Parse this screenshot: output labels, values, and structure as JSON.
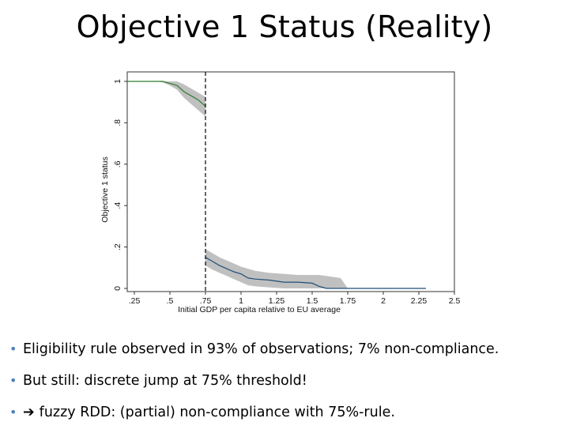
{
  "slide": {
    "title": "Objective 1 Status (Reality)",
    "bullets": [
      {
        "text": "Eligibility rule observed in 93% of observations; 7% non-compliance.",
        "arrow": false
      },
      {
        "text": "But still: discrete jump at 75% threshold!",
        "arrow": false
      },
      {
        "text": "fuzzy RDD: (partial) non-compliance with 75%-rule.",
        "arrow": true
      }
    ]
  },
  "chart_data": {
    "type": "line",
    "xlabel": "Initial GDP per capita relative to EU average",
    "ylabel": "Objective 1 status",
    "xlim": [
      0.2,
      2.5
    ],
    "ylim": [
      0,
      1
    ],
    "x_ticks": [
      {
        "v": 0.25,
        "label": ".25"
      },
      {
        "v": 0.5,
        "label": ".5"
      },
      {
        "v": 0.75,
        "label": ".75"
      },
      {
        "v": 1.0,
        "label": "1"
      },
      {
        "v": 1.25,
        "label": "1.25"
      },
      {
        "v": 1.5,
        "label": "1.5"
      },
      {
        "v": 1.75,
        "label": "1.75"
      },
      {
        "v": 2.0,
        "label": "2"
      },
      {
        "v": 2.25,
        "label": "2.25"
      },
      {
        "v": 2.5,
        "label": "2.5"
      }
    ],
    "y_ticks": [
      {
        "v": 0,
        "label": "0"
      },
      {
        "v": 0.2,
        "label": ".2"
      },
      {
        "v": 0.4,
        "label": ".4"
      },
      {
        "v": 0.6,
        "label": ".6"
      },
      {
        "v": 0.8,
        "label": ".8"
      },
      {
        "v": 1.0,
        "label": "1"
      }
    ],
    "threshold": 0.75,
    "grid": false,
    "colors": {
      "left_series": "#2e7d32",
      "right_series": "#1f4e79",
      "ci_band": "#c0c0c0",
      "threshold_line": "#000000"
    },
    "series": [
      {
        "side": "left",
        "x": [
          0.2,
          0.35,
          0.4,
          0.45,
          0.5,
          0.55,
          0.6,
          0.65,
          0.7,
          0.75
        ],
        "y": [
          1.0,
          1.0,
          1.0,
          1.0,
          0.99,
          0.98,
          0.95,
          0.93,
          0.91,
          0.88
        ],
        "lower": [
          1.0,
          1.0,
          1.0,
          0.995,
          0.98,
          0.96,
          0.92,
          0.89,
          0.86,
          0.83
        ],
        "upper": [
          1.0,
          1.0,
          1.0,
          1.0,
          1.0,
          1.0,
          0.985,
          0.965,
          0.945,
          0.925
        ]
      },
      {
        "side": "right",
        "x": [
          0.75,
          0.8,
          0.85,
          0.9,
          0.95,
          1.0,
          1.05,
          1.1,
          1.2,
          1.3,
          1.4,
          1.5,
          1.55,
          1.6,
          1.7,
          1.75,
          2.0,
          2.3
        ],
        "y": [
          0.15,
          0.13,
          0.11,
          0.095,
          0.08,
          0.07,
          0.05,
          0.045,
          0.04,
          0.03,
          0.03,
          0.025,
          0.01,
          0.0,
          0.0,
          0.0,
          0.0,
          0.0
        ],
        "lower": [
          0.11,
          0.09,
          0.075,
          0.06,
          0.045,
          0.03,
          0.015,
          0.01,
          0.005,
          0.0,
          0.0,
          0.0,
          0.0,
          0.0,
          0.0,
          0.0,
          0.0,
          0.0
        ],
        "upper": [
          0.19,
          0.17,
          0.15,
          0.135,
          0.12,
          0.105,
          0.095,
          0.085,
          0.075,
          0.07,
          0.065,
          0.065,
          0.065,
          0.06,
          0.05,
          0.0,
          0.0,
          0.0
        ]
      }
    ]
  }
}
